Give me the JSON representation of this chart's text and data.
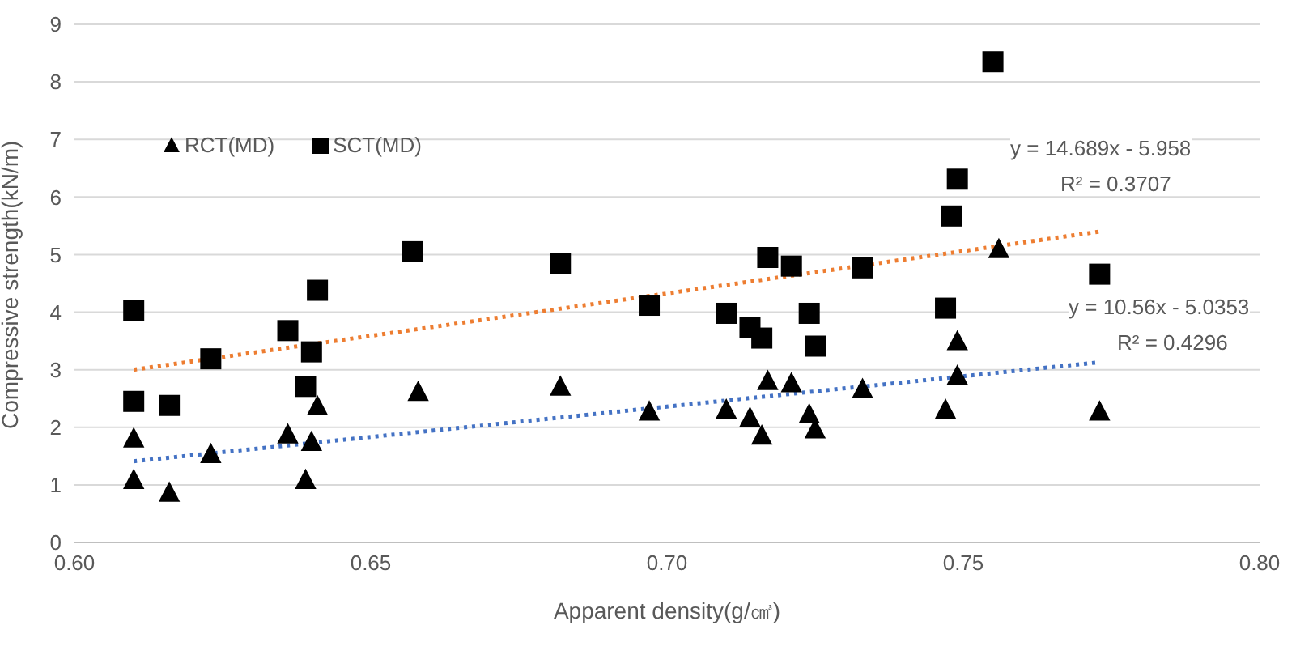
{
  "chart_data": {
    "type": "scatter",
    "xlabel": "Apparent density(g/㎤)",
    "ylabel": "Compressive strength(kN/m)",
    "xlim": [
      0.6,
      0.8
    ],
    "xticks": [
      {
        "value": 0.6,
        "label": "0.60"
      },
      {
        "value": 0.65,
        "label": "0.65"
      },
      {
        "value": 0.7,
        "label": "0.70"
      },
      {
        "value": 0.75,
        "label": "0.75"
      },
      {
        "value": 0.8,
        "label": "0.80"
      }
    ],
    "ylim": [
      0,
      9
    ],
    "yticks": [
      0,
      1,
      2,
      3,
      4,
      5,
      6,
      7,
      8,
      9
    ],
    "grid": "y",
    "legend": "top left",
    "series": [
      {
        "name": "RCT(MD)",
        "marker": "triangle",
        "color": "#000000",
        "x": [
          0.61,
          0.61,
          0.616,
          0.623,
          0.636,
          0.64,
          0.639,
          0.641,
          0.658,
          0.682,
          0.697,
          0.71,
          0.714,
          0.716,
          0.717,
          0.721,
          0.724,
          0.725,
          0.733,
          0.747,
          0.749,
          0.749,
          0.756,
          0.773
        ],
        "values": [
          1.8,
          1.08,
          0.86,
          1.53,
          1.87,
          1.74,
          1.08,
          2.36,
          2.61,
          2.7,
          2.27,
          2.3,
          2.16,
          1.85,
          2.8,
          2.76,
          2.22,
          1.96,
          2.66,
          2.3,
          2.89,
          3.49,
          5.09,
          2.27
        ]
      },
      {
        "name": "SCT(MD)",
        "marker": "square",
        "color": "#000000",
        "x": [
          0.61,
          0.61,
          0.616,
          0.623,
          0.636,
          0.64,
          0.639,
          0.641,
          0.657,
          0.682,
          0.697,
          0.755,
          0.749,
          0.748,
          0.747,
          0.773,
          0.717,
          0.721,
          0.733,
          0.71,
          0.714,
          0.716,
          0.724,
          0.725
        ],
        "values": [
          4.03,
          2.45,
          2.38,
          3.19,
          3.68,
          3.31,
          2.71,
          4.38,
          5.05,
          4.84,
          4.12,
          8.35,
          6.31,
          5.67,
          4.07,
          4.66,
          4.95,
          4.8,
          4.77,
          3.98,
          3.73,
          3.55,
          3.98,
          3.41
        ]
      },
      {
        "type": "line",
        "line_style": "dotted",
        "color": "#ed7d31",
        "x": [
          0.61,
          0.773
        ],
        "values": [
          3.0,
          5.4
        ]
      },
      {
        "type": "line",
        "line_style": "dotted",
        "color": "#4472c4",
        "x": [
          0.61,
          0.773
        ],
        "values": [
          1.41,
          3.13
        ]
      }
    ],
    "annotations": [
      "y = 14.689x - 5.958",
      "R² = 0.3707",
      "y = 10.56x - 5.0353",
      "R² = 0.4296"
    ]
  }
}
